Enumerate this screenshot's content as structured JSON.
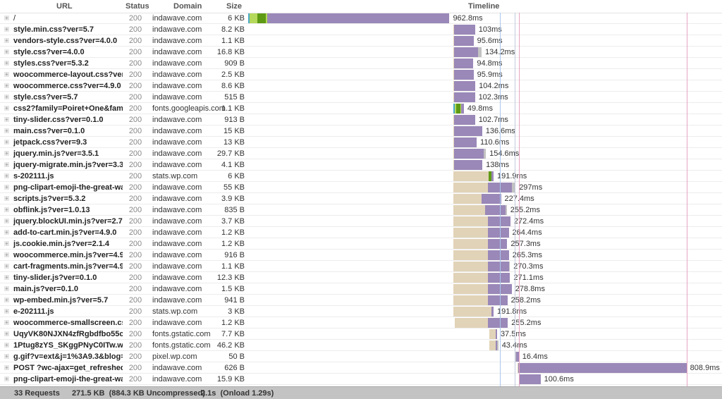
{
  "header": {
    "url": "URL",
    "status": "Status",
    "domain": "Domain",
    "size": "Size",
    "timeline": "Timeline"
  },
  "colors": {
    "dns": "#4aa9c9",
    "connect": "#b5d95b",
    "ssl": "#5e9a14",
    "wait": "#e1d3b8",
    "receive": "#9a88b8",
    "other": "#c2c2c2"
  },
  "chart_data": {
    "type": "waterfall",
    "xlim_ms": [
      0,
      2100
    ],
    "markers": [
      {
        "ms": 1204,
        "color": "#a9c8ee"
      },
      {
        "ms": 1275,
        "color": "#c3c9de"
      },
      {
        "ms": 1295,
        "color": "#e6a4c2"
      },
      {
        "ms": 2098,
        "color": "#e6a4c2"
      }
    ],
    "rows": [
      {
        "url": "/",
        "status": "200",
        "domain": "indawave.com",
        "size": "6 KB",
        "start_ms": 0,
        "time": "962.8ms",
        "segments": [
          [
            "dns",
            7
          ],
          [
            "connect",
            38
          ],
          [
            "ssl",
            40
          ],
          [
            "connect",
            5
          ],
          [
            "receive",
            872.8
          ]
        ]
      },
      {
        "url": "style.min.css?ver=5.7",
        "status": "200",
        "domain": "indawave.com",
        "size": "8.2 KB",
        "start_ms": 982,
        "time": "103ms",
        "segments": [
          [
            "wait",
            3
          ],
          [
            "receive",
            100
          ]
        ]
      },
      {
        "url": "vendors-style.css?ver=4.0.0",
        "status": "200",
        "domain": "indawave.com",
        "size": "1.1 KB",
        "start_ms": 982,
        "time": "95.6ms",
        "segments": [
          [
            "wait",
            3
          ],
          [
            "receive",
            92.6
          ]
        ]
      },
      {
        "url": "style.css?ver=4.0.0",
        "status": "200",
        "domain": "indawave.com",
        "size": "16.8 KB",
        "start_ms": 982,
        "time": "134.2ms",
        "segments": [
          [
            "wait",
            3
          ],
          [
            "receive",
            114.2
          ],
          [
            "other",
            17
          ]
        ]
      },
      {
        "url": "styles.css?ver=5.3.2",
        "status": "200",
        "domain": "indawave.com",
        "size": "909 B",
        "start_ms": 982,
        "time": "94.8ms",
        "segments": [
          [
            "wait",
            3
          ],
          [
            "receive",
            91.8
          ]
        ]
      },
      {
        "url": "woocommerce-layout.css?ver=4...",
        "status": "200",
        "domain": "indawave.com",
        "size": "2.5 KB",
        "start_ms": 982,
        "time": "95.9ms",
        "segments": [
          [
            "wait",
            3
          ],
          [
            "receive",
            92.9
          ]
        ]
      },
      {
        "url": "woocommerce.css?ver=4.9.0",
        "status": "200",
        "domain": "indawave.com",
        "size": "8.6 KB",
        "start_ms": 982,
        "time": "104.2ms",
        "segments": [
          [
            "wait",
            3
          ],
          [
            "receive",
            101.2
          ]
        ]
      },
      {
        "url": "style.css?ver=5.7",
        "status": "200",
        "domain": "indawave.com",
        "size": "515 B",
        "start_ms": 982,
        "time": "102.3ms",
        "segments": [
          [
            "wait",
            3
          ],
          [
            "receive",
            99.3
          ]
        ]
      },
      {
        "url": "css2?family=Poiret+One&family...",
        "status": "200",
        "domain": "fonts.googleapis.com",
        "size": "1.1 KB",
        "start_ms": 982,
        "time": "49.8ms",
        "segments": [
          [
            "dns",
            5
          ],
          [
            "connect",
            8
          ],
          [
            "ssl",
            20
          ],
          [
            "connect",
            5
          ],
          [
            "receive",
            11.8
          ]
        ]
      },
      {
        "url": "tiny-slider.css?ver=0.1.0",
        "status": "200",
        "domain": "indawave.com",
        "size": "913 B",
        "start_ms": 982,
        "time": "102.7ms",
        "segments": [
          [
            "wait",
            3
          ],
          [
            "receive",
            99.7
          ]
        ]
      },
      {
        "url": "main.css?ver=0.1.0",
        "status": "200",
        "domain": "indawave.com",
        "size": "15 KB",
        "start_ms": 982,
        "time": "136.6ms",
        "segments": [
          [
            "wait",
            3
          ],
          [
            "receive",
            133.6
          ]
        ]
      },
      {
        "url": "jetpack.css?ver=9.3",
        "status": "200",
        "domain": "indawave.com",
        "size": "13 KB",
        "start_ms": 982,
        "time": "110.6ms",
        "segments": [
          [
            "wait",
            3
          ],
          [
            "receive",
            107.6
          ]
        ]
      },
      {
        "url": "jquery.min.js?ver=3.5.1",
        "status": "200",
        "domain": "indawave.com",
        "size": "29.7 KB",
        "start_ms": 982,
        "time": "154.6ms",
        "segments": [
          [
            "wait",
            3
          ],
          [
            "receive",
            141.6
          ],
          [
            "other",
            10
          ]
        ]
      },
      {
        "url": "jquery-migrate.min.js?ver=3.3.2",
        "status": "200",
        "domain": "indawave.com",
        "size": "4.1 KB",
        "start_ms": 982,
        "time": "138ms",
        "segments": [
          [
            "wait",
            3
          ],
          [
            "receive",
            135
          ]
        ]
      },
      {
        "url": "s-202111.js",
        "status": "200",
        "domain": "stats.wp.com",
        "size": "6 KB",
        "start_ms": 982,
        "time": "191.9ms",
        "segments": [
          [
            "wait",
            169
          ],
          [
            "ssl",
            14
          ],
          [
            "receive",
            8.9
          ]
        ]
      },
      {
        "url": "png-clipart-emoji-the-great-wave...",
        "status": "200",
        "domain": "indawave.com",
        "size": "55 KB",
        "start_ms": 982,
        "time": "297ms",
        "segments": [
          [
            "wait",
            165
          ],
          [
            "receive",
            115
          ],
          [
            "other",
            17
          ]
        ]
      },
      {
        "url": "scripts.js?ver=5.3.2",
        "status": "200",
        "domain": "indawave.com",
        "size": "3.9 KB",
        "start_ms": 982,
        "time": "227.4ms",
        "segments": [
          [
            "wait",
            135
          ],
          [
            "receive",
            92.4
          ]
        ]
      },
      {
        "url": "obflink.js?ver=1.0.13",
        "status": "200",
        "domain": "indawave.com",
        "size": "835 B",
        "start_ms": 982,
        "time": "255.2ms",
        "segments": [
          [
            "wait",
            152
          ],
          [
            "receive",
            97
          ],
          [
            "other",
            6.2
          ]
        ]
      },
      {
        "url": "jquery.blockUI.min.js?ver=2.70",
        "status": "200",
        "domain": "indawave.com",
        "size": "3.7 KB",
        "start_ms": 982,
        "time": "272.4ms",
        "segments": [
          [
            "wait",
            165
          ],
          [
            "receive",
            107.4
          ]
        ]
      },
      {
        "url": "add-to-cart.min.js?ver=4.9.0",
        "status": "200",
        "domain": "indawave.com",
        "size": "1.2 KB",
        "start_ms": 982,
        "time": "264.4ms",
        "segments": [
          [
            "wait",
            165
          ],
          [
            "receive",
            99.4
          ]
        ]
      },
      {
        "url": "js.cookie.min.js?ver=2.1.4",
        "status": "200",
        "domain": "indawave.com",
        "size": "1.2 KB",
        "start_ms": 982,
        "time": "257.3ms",
        "segments": [
          [
            "wait",
            165
          ],
          [
            "receive",
            92.3
          ]
        ]
      },
      {
        "url": "woocommerce.min.js?ver=4.9.0",
        "status": "200",
        "domain": "indawave.com",
        "size": "916 B",
        "start_ms": 982,
        "time": "265.3ms",
        "segments": [
          [
            "wait",
            165
          ],
          [
            "receive",
            100.3
          ]
        ]
      },
      {
        "url": "cart-fragments.min.js?ver=4.9.0",
        "status": "200",
        "domain": "indawave.com",
        "size": "1.1 KB",
        "start_ms": 982,
        "time": "270.3ms",
        "segments": [
          [
            "wait",
            165
          ],
          [
            "receive",
            100.3
          ],
          [
            "other",
            5
          ]
        ]
      },
      {
        "url": "tiny-slider.js?ver=0.1.0",
        "status": "200",
        "domain": "indawave.com",
        "size": "12.3 KB",
        "start_ms": 982,
        "time": "271.1ms",
        "segments": [
          [
            "wait",
            165
          ],
          [
            "receive",
            106.1
          ]
        ]
      },
      {
        "url": "main.js?ver=0.1.0",
        "status": "200",
        "domain": "indawave.com",
        "size": "1.5 KB",
        "start_ms": 982,
        "time": "278.8ms",
        "segments": [
          [
            "wait",
            165
          ],
          [
            "receive",
            113.8
          ]
        ]
      },
      {
        "url": "wp-embed.min.js?ver=5.7",
        "status": "200",
        "domain": "indawave.com",
        "size": "941 B",
        "start_ms": 982,
        "time": "258.2ms",
        "segments": [
          [
            "wait",
            165
          ],
          [
            "receive",
            93.2
          ]
        ]
      },
      {
        "url": "e-202111.js",
        "status": "200",
        "domain": "stats.wp.com",
        "size": "3 KB",
        "start_ms": 982,
        "time": "191.8ms",
        "segments": [
          [
            "wait",
            182
          ],
          [
            "receive",
            9.8
          ]
        ]
      },
      {
        "url": "woocommerce-smallscreen.css?...",
        "status": "200",
        "domain": "indawave.com",
        "size": "1.2 KB",
        "start_ms": 987,
        "time": "255.2ms",
        "segments": [
          [
            "wait",
            160
          ],
          [
            "receive",
            95.2
          ]
        ]
      },
      {
        "url": "UqyVK80NJXN4zfRgbdfbo55cVw...",
        "status": "200",
        "domain": "fonts.gstatic.com",
        "size": "7.7 KB",
        "start_ms": 1153,
        "time": "37.5ms",
        "segments": [
          [
            "wait",
            30
          ],
          [
            "receive",
            7.5
          ]
        ]
      },
      {
        "url": "1Ptug8zYS_SKggPNyC0ITw.woff2",
        "status": "200",
        "domain": "fonts.gstatic.com",
        "size": "46.2 KB",
        "start_ms": 1153,
        "time": "43.4ms",
        "segments": [
          [
            "wait",
            30
          ],
          [
            "receive",
            8
          ],
          [
            "other",
            5.4
          ]
        ]
      },
      {
        "url": "g.gif?v=ext&j=1%3A9.3&blog=18...",
        "status": "200",
        "domain": "pixel.wp.com",
        "size": "50 B",
        "start_ms": 1278,
        "time": "16.4ms",
        "segments": [
          [
            "other",
            4
          ],
          [
            "receive",
            12.4
          ]
        ]
      },
      {
        "url": "POST ?wc-ajax=get_refreshed_fr...",
        "status": "200",
        "domain": "indawave.com",
        "size": "626 B",
        "start_ms": 1288,
        "time": "808.9ms",
        "segments": [
          [
            "wait",
            5
          ],
          [
            "receive",
            803.9
          ]
        ]
      },
      {
        "url": "png-clipart-emoji-the-great-wave...",
        "status": "200",
        "domain": "indawave.com",
        "size": "15.9 KB",
        "start_ms": 1298,
        "time": "100.6ms",
        "segments": [
          [
            "receive",
            100.6
          ]
        ]
      }
    ]
  },
  "footer": {
    "requests": "33 Requests",
    "size": "271.5 KB  (884.3 KB Uncompressed)",
    "time": "2.1s  (Onload 1.29s)"
  }
}
